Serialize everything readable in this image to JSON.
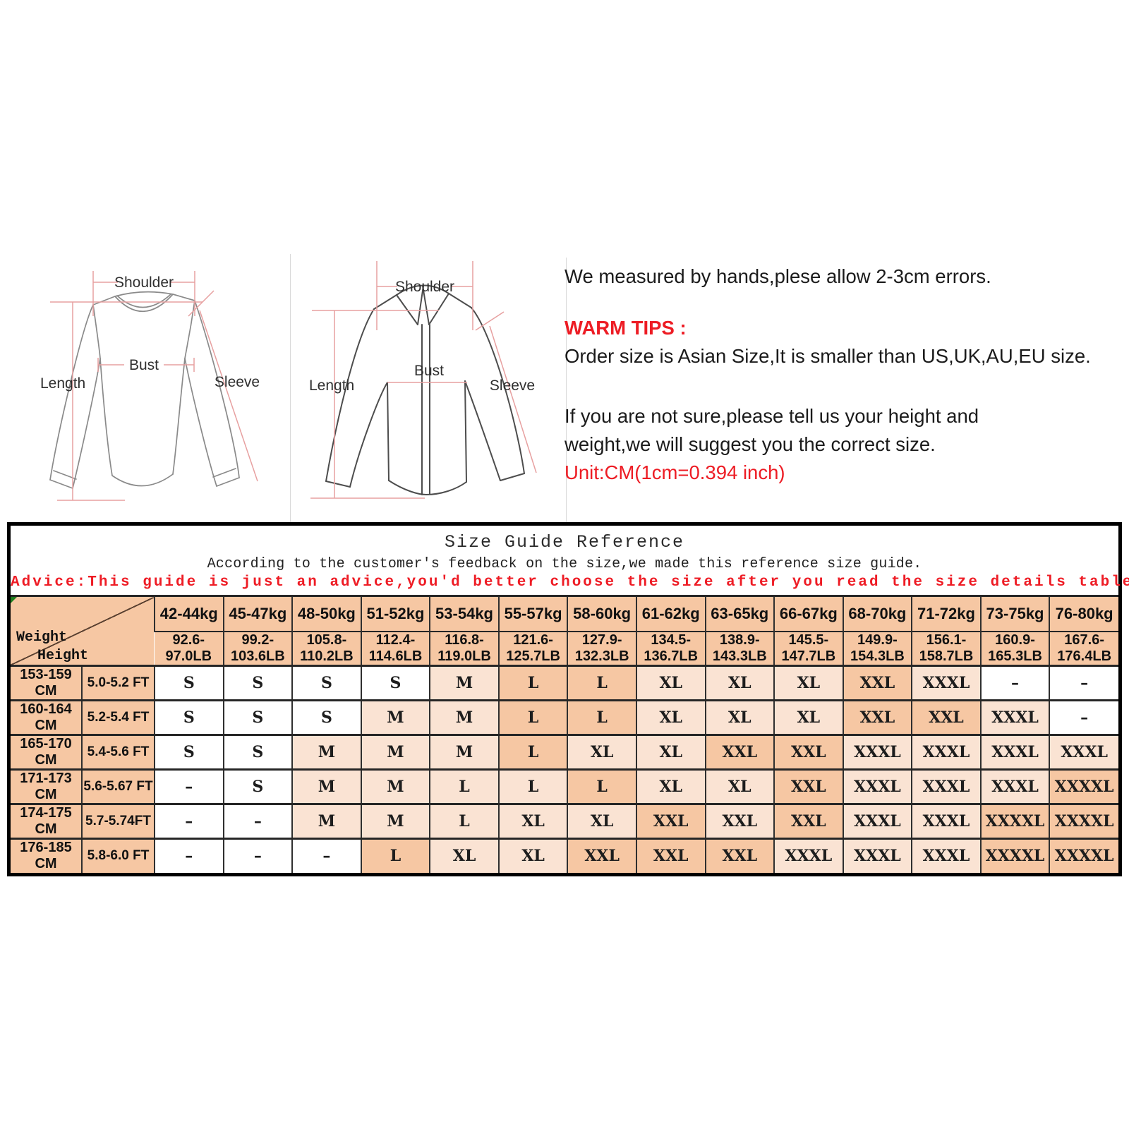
{
  "colors": {
    "cell_white": "#ffffff",
    "cell_light": "#fae3d3",
    "cell_medium": "#f6c7a3",
    "header_peach": "#f6c7a3",
    "red_accent": "#ed1c24",
    "pink_guide_line": "#e7a0a0",
    "table_border": "#000000",
    "corner_marker_green": "#1e7d1e"
  },
  "diagrams": {
    "tee": {
      "shoulder": "Shoulder",
      "bust": "Bust",
      "length": "Length",
      "sleeve": "Sleeve"
    },
    "shirt": {
      "shoulder": "Shoulder",
      "bust": "Bust",
      "length": "Length",
      "sleeve": "Sleeve"
    }
  },
  "notes": {
    "measured": "We measured by hands,plese allow 2-3cm errors.",
    "warm_title": "WARM TIPS :",
    "warm_body": "Order size is Asian Size,It is smaller than US,UK,AU,EU size.",
    "line1": "If you are not sure,please tell us your height and",
    "line2": "weight,we will suggest you the correct size.",
    "unit": "Unit:CM(1cm=0.394 inch)"
  },
  "size_table": {
    "title": "Size Guide Reference",
    "subtitle": "According to the customer's feedback on the size,we made this reference size guide.",
    "advice": "Advice:This guide is just an advice,you'd better choose the size after you read the size details table.",
    "corner_weight": "Weight",
    "corner_height": "Height",
    "cm_unit": "CM",
    "weight_kg": [
      "42-44kg",
      "45-47kg",
      "48-50kg",
      "51-52kg",
      "53-54kg",
      "55-57kg",
      "58-60kg",
      "61-62kg",
      "63-65kg",
      "66-67kg",
      "68-70kg",
      "71-72kg",
      "73-75kg",
      "76-80kg"
    ],
    "weight_lb": [
      [
        "92.6-",
        "97.0LB"
      ],
      [
        "99.2-",
        "103.6LB"
      ],
      [
        "105.8-",
        "110.2LB"
      ],
      [
        "112.4-",
        "114.6LB"
      ],
      [
        "116.8-",
        "119.0LB"
      ],
      [
        "121.6-",
        "125.7LB"
      ],
      [
        "127.9-",
        "132.3LB"
      ],
      [
        "134.5-",
        "136.7LB"
      ],
      [
        "138.9-",
        "143.3LB"
      ],
      [
        "145.5-",
        "147.7LB"
      ],
      [
        "149.9-",
        "154.3LB"
      ],
      [
        "156.1-",
        "158.7LB"
      ],
      [
        "160.9-",
        "165.3LB"
      ],
      [
        "167.6-",
        "176.4LB"
      ]
    ],
    "rows": [
      {
        "cm": "153-159",
        "ft": "5.0-5.2 FT",
        "sizes": [
          "S",
          "S",
          "S",
          "S",
          "M",
          "L",
          "L",
          "XL",
          "XL",
          "XL",
          "XXL",
          "XXXL",
          "–",
          "–"
        ],
        "shades": [
          "w",
          "w",
          "w",
          "w",
          "l",
          "m",
          "m",
          "l",
          "l",
          "l",
          "m",
          "l",
          "w",
          "w"
        ]
      },
      {
        "cm": "160-164",
        "ft": "5.2-5.4 FT",
        "sizes": [
          "S",
          "S",
          "S",
          "M",
          "M",
          "L",
          "L",
          "XL",
          "XL",
          "XL",
          "XXL",
          "XXL",
          "XXXL",
          "–"
        ],
        "shades": [
          "w",
          "w",
          "w",
          "l",
          "l",
          "m",
          "m",
          "l",
          "l",
          "l",
          "m",
          "m",
          "l",
          "w"
        ]
      },
      {
        "cm": "165-170",
        "ft": "5.4-5.6 FT",
        "sizes": [
          "S",
          "S",
          "M",
          "M",
          "M",
          "L",
          "XL",
          "XL",
          "XXL",
          "XXL",
          "XXXL",
          "XXXL",
          "XXXL",
          "XXXL"
        ],
        "shades": [
          "w",
          "w",
          "l",
          "l",
          "l",
          "m",
          "l",
          "l",
          "m",
          "m",
          "l",
          "l",
          "l",
          "l"
        ]
      },
      {
        "cm": "171-173",
        "ft": "5.6-5.67 FT",
        "sizes": [
          "–",
          "S",
          "M",
          "M",
          "L",
          "L",
          "L",
          "XL",
          "XL",
          "XXL",
          "XXXL",
          "XXXL",
          "XXXL",
          "XXXXL"
        ],
        "shades": [
          "w",
          "w",
          "l",
          "l",
          "l",
          "l",
          "m",
          "l",
          "l",
          "m",
          "l",
          "l",
          "l",
          "m"
        ]
      },
      {
        "cm": "174-175",
        "ft": "5.7-5.74FT",
        "sizes": [
          "–",
          "–",
          "M",
          "M",
          "L",
          "XL",
          "XL",
          "XXL",
          "XXL",
          "XXL",
          "XXXL",
          "XXXL",
          "XXXXL",
          "XXXXL"
        ],
        "shades": [
          "w",
          "w",
          "l",
          "l",
          "l",
          "l",
          "l",
          "m",
          "l",
          "m",
          "l",
          "l",
          "m",
          "m"
        ]
      },
      {
        "cm": "176-185",
        "ft": "5.8-6.0 FT",
        "sizes": [
          "–",
          "–",
          "–",
          "L",
          "XL",
          "XL",
          "XXL",
          "XXL",
          "XXL",
          "XXXL",
          "XXXL",
          "XXXL",
          "XXXXL",
          "XXXXL"
        ],
        "shades": [
          "w",
          "w",
          "w",
          "m",
          "l",
          "l",
          "m",
          "m",
          "m",
          "l",
          "l",
          "l",
          "m",
          "m"
        ]
      }
    ]
  }
}
